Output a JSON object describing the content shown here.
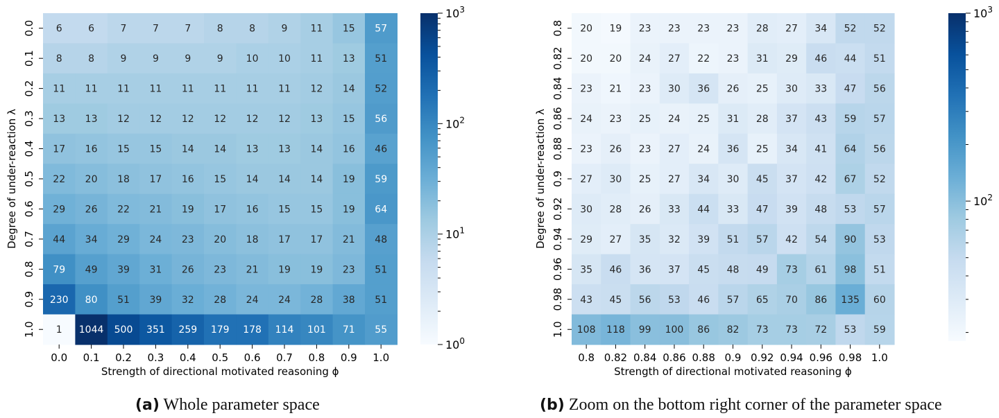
{
  "panels": [
    {
      "label": "(a)",
      "caption": "Whole parameter space",
      "chart_data": {
        "type": "heatmap",
        "title": "",
        "xlabel": "Strength of directional motivated reasoning ϕ",
        "ylabel": "Degree of under-reaction λ",
        "x_ticks": [
          "0.0",
          "0.1",
          "0.2",
          "0.3",
          "0.4",
          "0.5",
          "0.6",
          "0.7",
          "0.8",
          "0.9",
          "1.0"
        ],
        "y_ticks": [
          "0.0",
          "0.1",
          "0.2",
          "0.3",
          "0.4",
          "0.5",
          "0.6",
          "0.7",
          "0.8",
          "0.9",
          "1.0"
        ],
        "values": [
          [
            6,
            6,
            7,
            7,
            7,
            8,
            8,
            9,
            11,
            15,
            57
          ],
          [
            8,
            8,
            9,
            9,
            9,
            9,
            10,
            10,
            11,
            13,
            51
          ],
          [
            11,
            11,
            11,
            11,
            11,
            11,
            11,
            11,
            12,
            14,
            52
          ],
          [
            13,
            13,
            12,
            12,
            12,
            12,
            12,
            12,
            13,
            15,
            56
          ],
          [
            17,
            16,
            15,
            15,
            14,
            14,
            13,
            13,
            14,
            16,
            46
          ],
          [
            22,
            20,
            18,
            17,
            16,
            15,
            14,
            14,
            14,
            19,
            59
          ],
          [
            29,
            26,
            22,
            21,
            19,
            17,
            16,
            15,
            15,
            19,
            64
          ],
          [
            44,
            34,
            29,
            24,
            23,
            20,
            18,
            17,
            17,
            21,
            48
          ],
          [
            79,
            49,
            39,
            31,
            26,
            23,
            21,
            19,
            19,
            23,
            51
          ],
          [
            230,
            80,
            51,
            39,
            32,
            28,
            24,
            24,
            28,
            38,
            51
          ],
          [
            1,
            1044,
            500,
            351,
            259,
            179,
            178,
            114,
            101,
            71,
            55
          ]
        ],
        "colorbar": {
          "scale": "log",
          "min": 1,
          "max": 1000,
          "tick_values": [
            1,
            10,
            100,
            1000
          ],
          "tick_exponents": [
            "0",
            "1",
            "2",
            "3"
          ]
        }
      }
    },
    {
      "label": "(b)",
      "caption": "Zoom on the bottom right corner of the parameter space",
      "chart_data": {
        "type": "heatmap",
        "title": "",
        "xlabel": "Strength of directional motivated reasoning ϕ",
        "ylabel": "Degree of under-reaction λ",
        "x_ticks": [
          "0.8",
          "0.82",
          "0.84",
          "0.86",
          "0.88",
          "0.9",
          "0.92",
          "0.94",
          "0.96",
          "0.98",
          "1.0"
        ],
        "y_ticks": [
          "0.8",
          "0.82",
          "0.84",
          "0.86",
          "0.88",
          "0.9",
          "0.92",
          "0.94",
          "0.96",
          "0.98",
          "1.0"
        ],
        "values": [
          [
            20,
            19,
            23,
            23,
            23,
            23,
            28,
            27,
            34,
            52,
            52
          ],
          [
            20,
            20,
            24,
            27,
            22,
            23,
            31,
            29,
            46,
            44,
            51
          ],
          [
            23,
            21,
            23,
            30,
            36,
            26,
            25,
            30,
            33,
            47,
            56
          ],
          [
            24,
            23,
            25,
            24,
            25,
            31,
            28,
            37,
            43,
            59,
            57
          ],
          [
            23,
            26,
            23,
            27,
            24,
            36,
            25,
            34,
            41,
            64,
            56
          ],
          [
            27,
            30,
            25,
            27,
            34,
            30,
            45,
            37,
            42,
            67,
            52
          ],
          [
            30,
            28,
            26,
            33,
            44,
            33,
            47,
            39,
            48,
            53,
            57
          ],
          [
            29,
            27,
            35,
            32,
            39,
            51,
            57,
            42,
            54,
            90,
            53
          ],
          [
            35,
            46,
            36,
            37,
            45,
            48,
            49,
            73,
            61,
            98,
            51
          ],
          [
            43,
            45,
            56,
            53,
            46,
            57,
            65,
            70,
            86,
            135,
            60
          ],
          [
            108,
            118,
            99,
            100,
            86,
            82,
            73,
            73,
            72,
            53,
            59
          ]
        ],
        "colorbar": {
          "scale": "log",
          "min": 18,
          "max": 1000,
          "tick_values": [
            100,
            1000
          ],
          "tick_exponents": [
            "2",
            "3"
          ]
        }
      }
    }
  ]
}
